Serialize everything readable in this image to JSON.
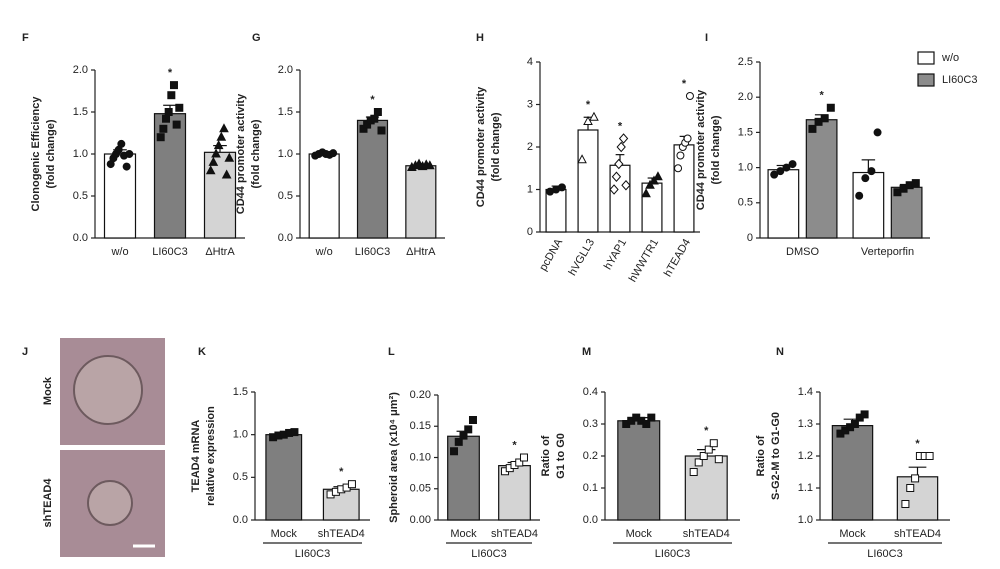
{
  "chart_data": [
    {
      "type": "bar",
      "panel": "F",
      "ylabel": [
        "Clonogenic Efficiency",
        "(fold change)"
      ],
      "categories": [
        "w/o",
        "LI60C3",
        "ΔHtrA"
      ],
      "series": [
        {
          "colors": [
            "#ffffff",
            "#7f7f7f",
            "#d4d4d4"
          ],
          "markers": [
            "circle",
            "square",
            "triangle"
          ],
          "values": [
            1.0,
            1.48,
            1.02
          ],
          "errors": [
            0.05,
            0.1,
            0.08
          ],
          "points": [
            [
              0.88,
              0.95,
              1.0,
              1.05,
              1.12,
              0.98,
              0.85,
              1.0
            ],
            [
              1.2,
              1.3,
              1.42,
              1.5,
              1.7,
              1.82,
              1.35,
              1.55
            ],
            [
              0.8,
              0.9,
              1.0,
              1.1,
              1.2,
              1.3,
              0.75,
              0.95
            ]
          ]
        }
      ],
      "annotations": [
        {
          "series": 0,
          "index": 1,
          "text": "*"
        }
      ],
      "ylim": [
        0,
        2.0
      ],
      "yticks": [
        {
          "value": 0,
          "label": "0.0"
        },
        {
          "value": 0.5,
          "label": "0.5"
        },
        {
          "value": 1.0,
          "label": "1.0"
        },
        {
          "value": 1.5,
          "label": "1.5"
        },
        {
          "value": 2.0,
          "label": "2.0"
        }
      ]
    },
    {
      "type": "bar",
      "panel": "G",
      "ylabel": [
        "CD44 promoter activity",
        "(fold change)"
      ],
      "categories": [
        "w/o",
        "LI60C3",
        "ΔHtrA"
      ],
      "series": [
        {
          "colors": [
            "#ffffff",
            "#7f7f7f",
            "#d4d4d4"
          ],
          "markers": [
            "circle",
            "square",
            "triangle"
          ],
          "values": [
            1.0,
            1.4,
            0.86
          ],
          "errors": [
            0.02,
            0.04,
            0.02
          ],
          "points": [
            [
              0.98,
              1.0,
              1.02,
              1.0,
              0.99,
              1.01
            ],
            [
              1.3,
              1.35,
              1.4,
              1.42,
              1.5,
              1.28
            ],
            [
              0.84,
              0.86,
              0.88,
              0.85,
              0.87,
              0.86
            ]
          ]
        }
      ],
      "annotations": [
        {
          "series": 0,
          "index": 1,
          "text": "*"
        }
      ],
      "ylim": [
        0,
        2.0
      ],
      "yticks": [
        {
          "value": 0,
          "label": "0.0"
        },
        {
          "value": 0.5,
          "label": "0.5"
        },
        {
          "value": 1.0,
          "label": "1.0"
        },
        {
          "value": 1.5,
          "label": "1.5"
        },
        {
          "value": 2.0,
          "label": "2.0"
        }
      ]
    },
    {
      "type": "bar",
      "panel": "H",
      "ylabel": [
        "CD44 promoter activity",
        "(fold change)"
      ],
      "rotate_labels": true,
      "categories": [
        "pcDNA",
        "hVGLL3",
        "hYAP1",
        "hWWTR1",
        "hTEAD4"
      ],
      "series": [
        {
          "colors": [
            "#ffffff",
            "#ffffff",
            "#ffffff",
            "#ffffff",
            "#ffffff"
          ],
          "markers": [
            "circle",
            "open-triangle",
            "open-diamond",
            "triangle",
            "open-circle"
          ],
          "values": [
            1.0,
            2.4,
            1.57,
            1.15,
            2.05
          ],
          "errors": [
            0.08,
            0.3,
            0.25,
            0.12,
            0.2
          ],
          "points": [
            [
              0.95,
              1.0,
              1.05
            ],
            [
              1.7,
              2.6,
              2.7
            ],
            [
              1.0,
              1.3,
              1.6,
              2.0,
              2.2,
              1.1
            ],
            [
              0.9,
              1.1,
              1.2,
              1.3
            ],
            [
              1.5,
              1.8,
              2.0,
              2.1,
              2.2,
              3.2
            ]
          ]
        }
      ],
      "annotations": [
        {
          "series": 0,
          "index": 1,
          "text": "*"
        },
        {
          "series": 0,
          "index": 2,
          "text": "*"
        },
        {
          "series": 0,
          "index": 4,
          "text": "*"
        }
      ],
      "ylim": [
        0,
        4
      ],
      "yticks": [
        0,
        1,
        2,
        3,
        4
      ]
    },
    {
      "type": "bar",
      "panel": "I",
      "ylabel": [
        "CD44 promoter activity",
        "(fold change)"
      ],
      "categories": [
        "DMSO",
        "Verteporfin"
      ],
      "series": [
        {
          "name": "w/o",
          "color": "#ffffff",
          "marker": "circle",
          "values": [
            0.97,
            0.93
          ],
          "errors": [
            0.06,
            0.18
          ],
          "points": [
            [
              0.9,
              0.95,
              1.0,
              1.05
            ],
            [
              0.6,
              0.85,
              0.95,
              1.5
            ]
          ]
        },
        {
          "name": "LI60C3",
          "color": "#8c8c8c",
          "marker": "square",
          "values": [
            1.68,
            0.72
          ],
          "errors": [
            0.07,
            0.04
          ],
          "points": [
            [
              1.55,
              1.65,
              1.7,
              1.85
            ],
            [
              0.65,
              0.7,
              0.75,
              0.78
            ]
          ]
        }
      ],
      "annotations": [
        {
          "series": 1,
          "index": 0,
          "text": "*"
        }
      ],
      "legend": "top-right",
      "ylim": [
        0,
        2.5
      ],
      "yticks": [
        0,
        0.5,
        {
          "value": 1.0,
          "label": "1.0"
        },
        1.5,
        {
          "value": 2.0,
          "label": "2.0"
        },
        2.5
      ]
    },
    {
      "type": "bar",
      "panel": "K",
      "ylabel": [
        "TEAD4 mRNA",
        "relative expression"
      ],
      "group": "LI60C3",
      "categories": [
        "Mock",
        "shTEAD4"
      ],
      "series": [
        {
          "colors": [
            "#7f7f7f",
            "#d4d4d4"
          ],
          "markers": [
            "square",
            "open-square"
          ],
          "values": [
            1.0,
            0.36
          ],
          "errors": [
            0.02,
            0.03
          ],
          "points": [
            [
              0.97,
              0.99,
              1.0,
              1.02,
              1.03
            ],
            [
              0.3,
              0.33,
              0.36,
              0.38,
              0.42
            ]
          ]
        }
      ],
      "annotations": [
        {
          "series": 0,
          "index": 1,
          "text": "*"
        }
      ],
      "ylim": [
        0,
        1.5
      ],
      "yticks": [
        {
          "value": 0,
          "label": "0.0"
        },
        {
          "value": 0.5,
          "label": "0.5"
        },
        {
          "value": 1.0,
          "label": "1.0"
        },
        {
          "value": 1.5,
          "label": "1.5"
        }
      ]
    },
    {
      "type": "bar",
      "panel": "L",
      "ylabel": [
        "Spheroid area (x10⁴ μm²)"
      ],
      "group": "LI60C3",
      "categories": [
        "Mock",
        "shTEAD4"
      ],
      "series": [
        {
          "colors": [
            "#7f7f7f",
            "#d4d4d4"
          ],
          "markers": [
            "square",
            "open-square"
          ],
          "values": [
            0.134,
            0.087
          ],
          "errors": [
            0.008,
            0.005
          ],
          "points": [
            [
              0.11,
              0.125,
              0.135,
              0.145,
              0.16
            ],
            [
              0.078,
              0.083,
              0.088,
              0.092,
              0.1
            ]
          ]
        }
      ],
      "annotations": [
        {
          "series": 0,
          "index": 1,
          "text": "*"
        }
      ],
      "ylim": [
        0,
        0.2
      ],
      "yticks": [
        {
          "value": 0,
          "label": "0.00"
        },
        {
          "value": 0.05,
          "label": "0.05"
        },
        {
          "value": 0.1,
          "label": "0.10"
        },
        {
          "value": 0.15,
          "label": "0.15"
        },
        {
          "value": 0.2,
          "label": "0.20"
        }
      ]
    },
    {
      "type": "bar",
      "panel": "M",
      "ylabel": [
        "Ratio of",
        "G1 to G0"
      ],
      "group": "LI60C3",
      "categories": [
        "Mock",
        "shTEAD4"
      ],
      "series": [
        {
          "colors": [
            "#7f7f7f",
            "#d4d4d4"
          ],
          "markers": [
            "square",
            "open-square"
          ],
          "values": [
            0.31,
            0.2
          ],
          "errors": [
            0.01,
            0.02
          ],
          "points": [
            [
              0.3,
              0.31,
              0.32,
              0.31,
              0.3,
              0.32
            ],
            [
              0.15,
              0.18,
              0.2,
              0.22,
              0.24,
              0.19
            ]
          ]
        }
      ],
      "annotations": [
        {
          "series": 0,
          "index": 1,
          "text": "*"
        }
      ],
      "ylim": [
        0,
        0.4
      ],
      "yticks": [
        {
          "value": 0,
          "label": "0.0"
        },
        0.1,
        0.2,
        0.3,
        0.4
      ]
    },
    {
      "type": "bar",
      "panel": "N",
      "ylabel": [
        "Ratio of",
        "S-G2-M to G1-G0"
      ],
      "group": "LI60C3",
      "categories": [
        "Mock",
        "shTEAD4"
      ],
      "series": [
        {
          "colors": [
            "#7f7f7f",
            "#d4d4d4"
          ],
          "markers": [
            "square",
            "open-square"
          ],
          "values": [
            1.295,
            1.135
          ],
          "errors": [
            0.02,
            0.03
          ],
          "points": [
            [
              1.27,
              1.28,
              1.29,
              1.3,
              1.32,
              1.33
            ],
            [
              1.05,
              1.1,
              1.13,
              1.2,
              1.2,
              1.2
            ]
          ]
        }
      ],
      "annotations": [
        {
          "series": 0,
          "index": 1,
          "text": "*"
        }
      ],
      "ylim": [
        1.0,
        1.4
      ],
      "yticks": [
        {
          "value": 1.0,
          "label": "1.0"
        },
        1.1,
        1.2,
        1.3,
        1.4
      ]
    }
  ],
  "panel_j": {
    "panel": "J",
    "labels": [
      "Mock",
      "shTEAD4"
    ]
  }
}
